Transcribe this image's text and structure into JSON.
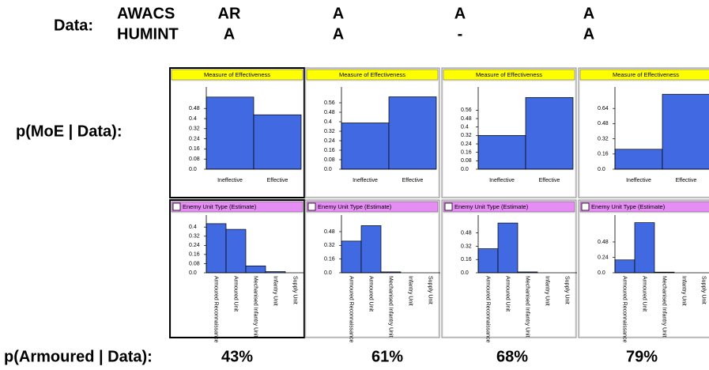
{
  "header": {
    "data_label": "Data:",
    "sources": [
      "AWACS",
      "HUMINT"
    ],
    "columns": [
      [
        "AR",
        "A"
      ],
      [
        "A",
        "A"
      ],
      [
        "A",
        "-"
      ],
      [
        "A",
        "A"
      ]
    ]
  },
  "row_labels": [
    "p(MoE | Data):",
    "p(Armoured | Data):"
  ],
  "armoured_probabilities": [
    "43%",
    "61%",
    "68%",
    "79%"
  ],
  "chart_data": [
    {
      "type": "bar",
      "title": "Measure of Effectiveness",
      "categories": [
        "Ineffective",
        "Effective"
      ],
      "values": [
        0.57,
        0.43
      ],
      "color": "#4169e1",
      "ylim": [
        0,
        0.6
      ],
      "yticks": [
        {
          "value": 0,
          "label": "0.0"
        },
        0.08,
        0.16,
        0.24,
        0.32,
        0.4,
        0.48
      ]
    },
    {
      "type": "bar",
      "title": "Measure of Effectiveness",
      "categories": [
        "Ineffective",
        "Effective"
      ],
      "values": [
        0.39,
        0.61
      ],
      "color": "#4169e1",
      "ylim": [
        0,
        0.64
      ],
      "yticks": [
        {
          "value": 0,
          "label": "0.0"
        },
        0.08,
        0.16,
        0.24,
        0.32,
        0.4,
        0.48,
        0.56
      ]
    },
    {
      "type": "bar",
      "title": "Measure of Effectiveness",
      "categories": [
        "Ineffective",
        "Effective"
      ],
      "values": [
        0.32,
        0.68
      ],
      "color": "#4169e1",
      "ylim": [
        0,
        0.72
      ],
      "yticks": [
        {
          "value": 0,
          "label": "0.0"
        },
        0.08,
        0.16,
        0.24,
        0.32,
        0.4,
        0.48,
        0.56
      ]
    },
    {
      "type": "bar",
      "title": "Measure of Effectiveness",
      "categories": [
        "Ineffective",
        "Effective"
      ],
      "values": [
        0.21,
        0.79
      ],
      "color": "#4169e1",
      "ylim": [
        0,
        0.8
      ],
      "yticks": [
        {
          "value": 0,
          "label": "0.0"
        },
        0.16,
        0.32,
        0.48,
        0.64
      ]
    },
    {
      "type": "bar",
      "title": "Enemy Unit Type (Estimate)",
      "categories": [
        "Armoured Reconnaissance",
        "Armoured Unit",
        "Mechanised Infantry Unit",
        "Infantry Unit",
        "Supply Unit"
      ],
      "values": [
        0.43,
        0.38,
        0.06,
        0.01,
        0
      ],
      "color": "#4169e1",
      "ylim": [
        0,
        0.45
      ],
      "yticks": [
        {
          "value": 0,
          "label": "0.0"
        },
        0.08,
        0.16,
        0.24,
        0.32,
        0.4
      ]
    },
    {
      "type": "bar",
      "title": "Enemy Unit Type (Estimate)",
      "categories": [
        "Armoured Reconnaissance",
        "Armoured Unit",
        "Mechanised Infantry Unit",
        "Infantry Unit",
        "Supply Unit"
      ],
      "values": [
        0.37,
        0.55,
        0.01,
        0,
        0
      ],
      "color": "#4169e1",
      "ylim": [
        0,
        0.6
      ],
      "yticks": [
        {
          "value": 0,
          "label": "0.0"
        },
        0.16,
        0.32,
        0.48
      ]
    },
    {
      "type": "bar",
      "title": "Enemy Unit Type (Estimate)",
      "categories": [
        "Armoured Reconnaissance",
        "Armoured Unit",
        "Mechanised Infantry Unit",
        "Infantry Unit",
        "Supply Unit"
      ],
      "values": [
        0.29,
        0.6,
        0.01,
        0,
        0
      ],
      "color": "#4169e1",
      "ylim": [
        0,
        0.62
      ],
      "yticks": [
        {
          "value": 0,
          "label": "0.0"
        },
        0.16,
        0.32,
        0.48
      ]
    },
    {
      "type": "bar",
      "title": "Enemy Unit Type (Estimate)",
      "categories": [
        "Armoured Reconnaissance",
        "Armoured Unit",
        "Mechanised Infantry Unit",
        "Infantry Unit",
        "Supply Unit"
      ],
      "values": [
        0.2,
        0.78,
        0.01,
        0,
        0
      ],
      "color": "#4169e1",
      "ylim": [
        0,
        0.8
      ],
      "yticks": [
        {
          "value": 0,
          "label": "0.0"
        },
        0.24,
        0.48
      ]
    }
  ]
}
